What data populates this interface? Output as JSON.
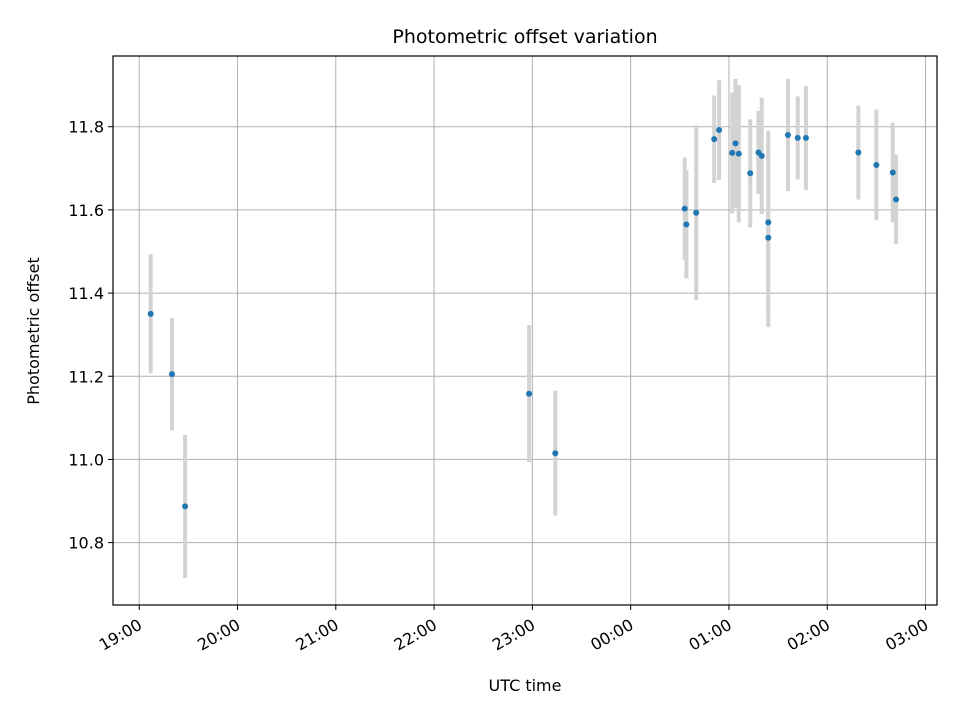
{
  "chart_data": {
    "type": "scatter",
    "title": "Photometric offset variation",
    "xlabel": "UTC time",
    "ylabel": "Photometric offset",
    "x_tick_labels": [
      "19:00",
      "20:00",
      "21:00",
      "22:00",
      "23:00",
      "00:00",
      "01:00",
      "02:00",
      "03:00"
    ],
    "y_tick_labels": [
      "10.8",
      "11.0",
      "11.2",
      "11.4",
      "11.6",
      "11.8"
    ],
    "xlim": [
      "18:44",
      "03:07"
    ],
    "ylim": [
      10.65,
      11.97
    ],
    "grid": true,
    "marker_color": "#1f77b4",
    "errorbar_color": "#d3d3d3",
    "points": [
      {
        "x": "19:07",
        "y": 11.35,
        "yerr": 0.143
      },
      {
        "x": "19:20",
        "y": 11.205,
        "yerr": 0.135
      },
      {
        "x": "19:28",
        "y": 10.887,
        "yerr": 0.172
      },
      {
        "x": "22:58",
        "y": 11.158,
        "yerr": 0.165
      },
      {
        "x": "23:14",
        "y": 11.015,
        "yerr": 0.15
      },
      {
        "x": "00:33",
        "y": 11.603,
        "yerr": 0.123
      },
      {
        "x": "00:34",
        "y": 11.565,
        "yerr": 0.13
      },
      {
        "x": "00:40",
        "y": 11.593,
        "yerr": 0.21
      },
      {
        "x": "00:51",
        "y": 11.77,
        "yerr": 0.105
      },
      {
        "x": "00:54",
        "y": 11.792,
        "yerr": 0.12
      },
      {
        "x": "01:02",
        "y": 11.737,
        "yerr": 0.145
      },
      {
        "x": "01:04",
        "y": 11.76,
        "yerr": 0.155
      },
      {
        "x": "01:06",
        "y": 11.735,
        "yerr": 0.165
      },
      {
        "x": "01:13",
        "y": 11.688,
        "yerr": 0.13
      },
      {
        "x": "01:18",
        "y": 11.738,
        "yerr": 0.1
      },
      {
        "x": "01:20",
        "y": 11.73,
        "yerr": 0.14
      },
      {
        "x": "01:24",
        "y": 11.57,
        "yerr": 0.22
      },
      {
        "x": "01:24",
        "y": 11.533,
        "yerr": 0.215
      },
      {
        "x": "01:36",
        "y": 11.78,
        "yerr": 0.135
      },
      {
        "x": "01:42",
        "y": 11.773,
        "yerr": 0.1
      },
      {
        "x": "01:47",
        "y": 11.773,
        "yerr": 0.125
      },
      {
        "x": "02:19",
        "y": 11.738,
        "yerr": 0.113
      },
      {
        "x": "02:30",
        "y": 11.708,
        "yerr": 0.133
      },
      {
        "x": "02:40",
        "y": 11.69,
        "yerr": 0.12
      },
      {
        "x": "02:42",
        "y": 11.625,
        "yerr": 0.108
      }
    ]
  }
}
